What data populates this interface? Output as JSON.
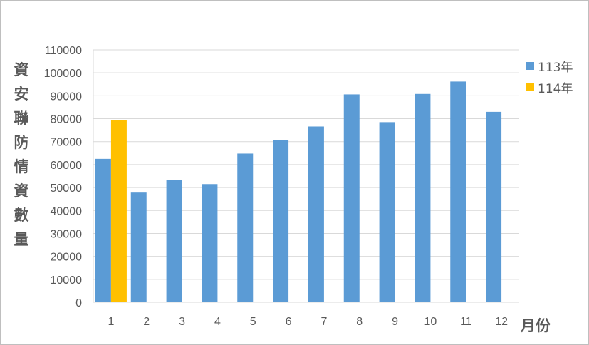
{
  "chart_data": {
    "type": "bar",
    "title": "",
    "xlabel": "月份",
    "ylabel": "資安聯防情資數量",
    "categories": [
      "1",
      "2",
      "3",
      "4",
      "5",
      "6",
      "7",
      "8",
      "9",
      "10",
      "11",
      "12"
    ],
    "series": [
      {
        "name": "113年",
        "color": "#5b9bd5",
        "values": [
          62500,
          47800,
          53400,
          51500,
          64800,
          70700,
          76600,
          90600,
          78500,
          90800,
          96200,
          83000
        ]
      },
      {
        "name": "114年",
        "color": "#ffc000",
        "values": [
          79500,
          null,
          null,
          null,
          null,
          null,
          null,
          null,
          null,
          null,
          null,
          null
        ]
      }
    ],
    "ylim": [
      0,
      110000
    ],
    "yticks": [
      "0",
      "10000",
      "20000",
      "30000",
      "40000",
      "50000",
      "60000",
      "70000",
      "80000",
      "90000",
      "100000",
      "110000"
    ],
    "grid": true,
    "legend": "right"
  }
}
